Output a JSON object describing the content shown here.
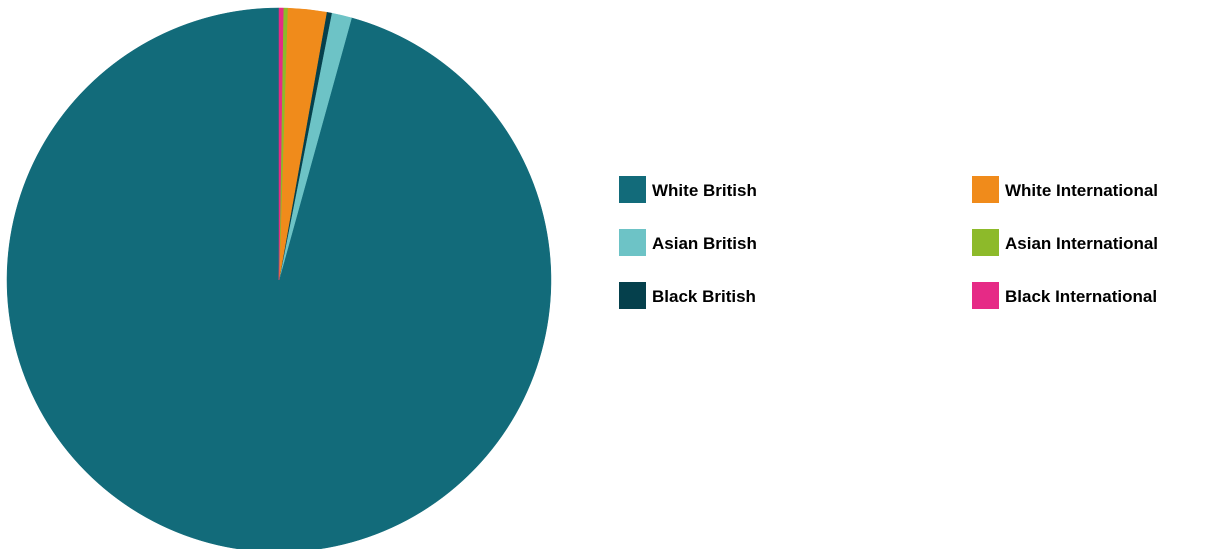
{
  "chart_data": {
    "type": "pie",
    "title": "",
    "start": "top",
    "direction": "counterclockwise",
    "slices": [
      {
        "label": "White British",
        "value": 95.7,
        "color": "#126B7A"
      },
      {
        "label": "Asian British",
        "value": 1.2,
        "color": "#6DC3C6"
      },
      {
        "label": "Black British",
        "value": 0.3,
        "color": "#05404C"
      },
      {
        "label": "White International",
        "value": 2.3,
        "color": "#F08B1B"
      },
      {
        "label": "Asian International",
        "value": 0.25,
        "color": "#8DBA2A"
      },
      {
        "label": "Black International",
        "value": 0.25,
        "color": "#E62A86"
      }
    ],
    "legend": {
      "placement": "right",
      "columns": [
        [
          "White British",
          "Asian British",
          "Black British"
        ],
        [
          "White International",
          "Asian International",
          "Black International"
        ]
      ]
    }
  }
}
